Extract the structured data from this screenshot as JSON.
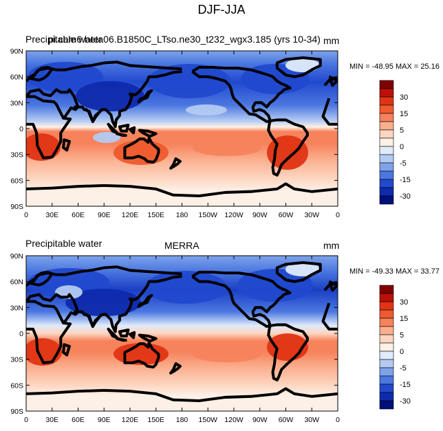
{
  "main_title": "DJF-JJA",
  "panels": [
    {
      "left_title": "Precipitable water",
      "center_title": "pi.cam6.beta06.B1850C_LTso.ne30_t232_wgx3.185 (yrs 10-34)",
      "units": "mm",
      "minmax": "MIN = -48.95 MAX =  25.16"
    },
    {
      "left_title": "Precipitable water",
      "center_title": "MERRA",
      "units": "mm",
      "minmax": "MIN = -49.33 MAX =  33.77"
    }
  ],
  "lat_labels": [
    "90N",
    "60N",
    "30N",
    "0",
    "30S",
    "60S",
    "90S"
  ],
  "lon_labels": [
    "0",
    "30E",
    "60E",
    "90E",
    "120E",
    "150E",
    "180",
    "150W",
    "120W",
    "90W",
    "60W",
    "30W",
    "0"
  ],
  "colorbar": {
    "labels": [
      "30",
      "15",
      "5",
      "0",
      "-5",
      "-15",
      "-30"
    ],
    "colors": [
      "#7f0000",
      "#bd1008",
      "#e03414",
      "#ef5a2e",
      "#f6835c",
      "#fbaf8f",
      "#fdd5c0",
      "#fdf0e6",
      "#dfeafb",
      "#b3cbf3",
      "#7ea3ea",
      "#4b77e0",
      "#2149cf",
      "#0f2bad",
      "#000f7a"
    ]
  },
  "colors": {
    "ocean_mid_lat_neg": "#2e5ae0",
    "tropics_pos": "#f7a283",
    "southern_ocean": "#fcd8c4",
    "antarctic": "#fdf0e6"
  }
}
